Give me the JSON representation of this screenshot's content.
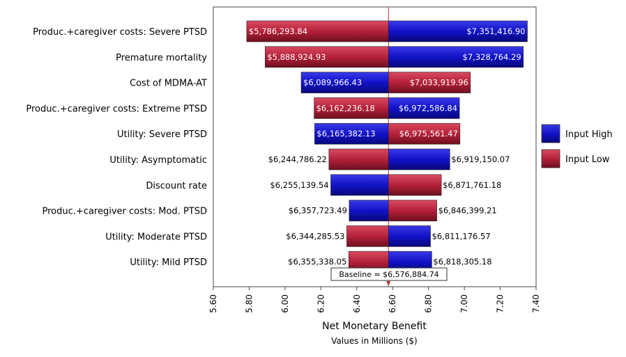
{
  "chart_data": {
    "type": "bar",
    "subtype": "tornado",
    "categories": [
      "Produc.+caregiver costs: Severe PTSD",
      "Premature mortality",
      "Cost of MDMA-AT",
      "Produc.+caregiver costs: Extreme PTSD",
      "Utility: Severe PTSD",
      "Utility: Asymptomatic",
      "Discount rate",
      "Produc.+caregiver costs: Mod. PTSD",
      "Utility: Moderate PTSD",
      "Utility: Mild PTSD"
    ],
    "bars": [
      {
        "low_value": 5786293.84,
        "low_label": "$5,786,293.84",
        "low_series": "Input Low",
        "high_value": 7351416.9,
        "high_label": "$7,351,416.90",
        "high_series": "Input High",
        "labels_inside": true
      },
      {
        "low_value": 5888924.93,
        "low_label": "$5,888,924.93",
        "low_series": "Input Low",
        "high_value": 7328764.29,
        "high_label": "$7,328,764.29",
        "high_series": "Input High",
        "labels_inside": true
      },
      {
        "low_value": 6089966.43,
        "low_label": "$6,089,966.43",
        "low_series": "Input High",
        "high_value": 7033919.96,
        "high_label": "$7,033,919.96",
        "high_series": "Input Low",
        "labels_inside": true
      },
      {
        "low_value": 6162236.18,
        "low_label": "$6,162,236.18",
        "low_series": "Input Low",
        "high_value": 6972586.84,
        "high_label": "$6,972,586.84",
        "high_series": "Input High",
        "labels_inside": true
      },
      {
        "low_value": 6165382.13,
        "low_label": "$6,165,382.13",
        "low_series": "Input High",
        "high_value": 6975561.47,
        "high_label": "$6,975,561.47",
        "high_series": "Input Low",
        "labels_inside": true
      },
      {
        "low_value": 6244786.22,
        "low_label": "$6,244,786.22",
        "low_series": "Input Low",
        "high_value": 6919150.07,
        "high_label": "$6,919,150.07",
        "high_series": "Input High",
        "labels_inside": false
      },
      {
        "low_value": 6255139.54,
        "low_label": "$6,255,139.54",
        "low_series": "Input High",
        "high_value": 6871761.18,
        "high_label": "$6,871,761.18",
        "high_series": "Input Low",
        "labels_inside": false
      },
      {
        "low_value": 6357723.49,
        "low_label": "$6,357,723.49",
        "low_series": "Input High",
        "high_value": 6846399.21,
        "high_label": "$6,846,399.21",
        "high_series": "Input Low",
        "labels_inside": false
      },
      {
        "low_value": 6344285.53,
        "low_label": "$6,344,285.53",
        "low_series": "Input Low",
        "high_value": 6811176.57,
        "high_label": "$6,811,176.57",
        "high_series": "Input High",
        "labels_inside": false
      },
      {
        "low_value": 6355338.05,
        "low_label": "$6,355,338.05",
        "low_series": "Input Low",
        "high_value": 6818305.18,
        "high_label": "$6,818,305.18",
        "high_series": "Input High",
        "labels_inside": false
      }
    ],
    "baseline": 6576884.74,
    "baseline_label": "Baseline = $6,576,884.74",
    "xlim": [
      5.6,
      7.4
    ],
    "ticks": [
      5.6,
      5.8,
      6.0,
      6.2,
      6.4,
      6.6,
      6.8,
      7.0,
      7.2,
      7.4
    ],
    "tick_labels": [
      "5.60",
      "5.80",
      "6.00",
      "6.20",
      "6.40",
      "6.60",
      "6.80",
      "7.00",
      "7.20",
      "7.40"
    ],
    "xlabel": "Net Monetary Benefit",
    "xlabel_sub": "Values in Millions ($)",
    "legend": [
      {
        "name": "Input High",
        "color": "#1515c0"
      },
      {
        "name": "Input Low",
        "color": "#b5213a"
      }
    ],
    "legend_position": "right",
    "grid": false
  }
}
